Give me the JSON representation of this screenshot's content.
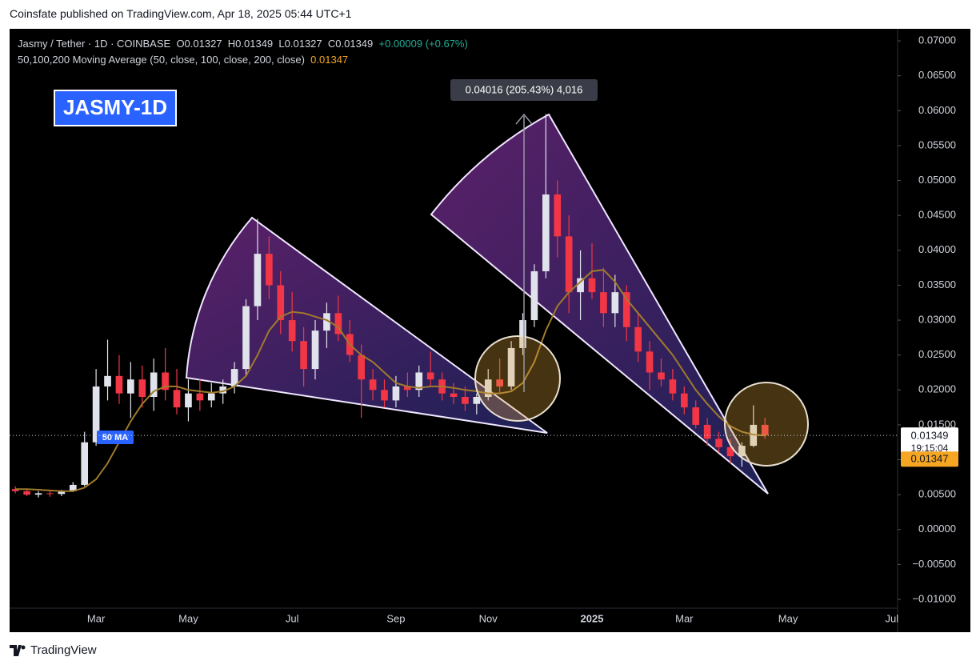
{
  "header": {
    "publisher": "Coinsfate published on TradingView.com, Apr 18, 2025 05:44 UTC+1"
  },
  "chart_data": {
    "type": "candlestick",
    "symbol": "Jasmy / Tether · 1D · COINBASE",
    "ohlc_readout": [
      "O0.01327",
      "H0.01349",
      "L0.01327",
      "C0.01349"
    ],
    "change": "+0.00009 (+0.67%)",
    "indicator": "50,100,200 Moving Average (50, close, 100, close, 200, close)",
    "badge": "JASMY-1D",
    "annotations": {
      "ma_tag": "50 MA",
      "measure": "0.04016 (205.43%) 4,016"
    },
    "countdown": "19:15:04",
    "categories": [
      null,
      null,
      null,
      null,
      null,
      null,
      null,
      "Mar",
      null,
      null,
      null,
      null,
      null,
      null,
      null,
      "May",
      null,
      null,
      null,
      null,
      null,
      null,
      null,
      null,
      "Jul",
      null,
      null,
      null,
      null,
      null,
      null,
      null,
      null,
      "Sep",
      null,
      null,
      null,
      null,
      null,
      null,
      null,
      "Nov",
      null,
      null,
      null,
      null,
      null,
      null,
      null,
      null,
      "2025",
      null,
      null,
      null,
      null,
      null,
      null,
      null,
      "Mar",
      null,
      null,
      null,
      null,
      null,
      null,
      null,
      null,
      "May",
      null,
      null,
      null,
      null,
      null,
      null,
      null,
      null,
      "Jul"
    ],
    "open": [
      0.0058,
      0.0055,
      0.005,
      0.0052,
      0.0051,
      0.0055,
      0.0064,
      0.0125,
      0.0205,
      0.022,
      0.0195,
      0.0215,
      0.019,
      0.0225,
      0.02,
      0.0175,
      0.0195,
      0.0185,
      0.0195,
      0.0205,
      0.023,
      0.032,
      0.0395,
      0.035,
      0.03,
      0.027,
      0.023,
      0.0285,
      0.031,
      0.028,
      0.025,
      0.0215,
      0.02,
      0.0185,
      0.0205,
      0.02,
      0.0225,
      0.0215,
      0.0195,
      0.019,
      0.018,
      0.019,
      0.0215,
      0.0205,
      0.026,
      0.03,
      0.037,
      0.048,
      0.042,
      0.034,
      0.036,
      0.034,
      0.031,
      0.034,
      0.029,
      0.0255,
      0.0225,
      0.0215,
      0.0195,
      0.0175,
      0.015,
      0.013,
      0.0118,
      0.0105,
      0.012,
      0.015,
      null,
      null,
      null,
      null,
      null,
      null,
      null,
      null,
      null,
      null,
      null
    ],
    "high": [
      0.0062,
      0.0058,
      0.0055,
      0.0056,
      0.0057,
      0.0068,
      0.014,
      0.023,
      0.0272,
      0.025,
      0.024,
      0.0235,
      0.0245,
      0.026,
      0.023,
      0.0215,
      0.0215,
      0.021,
      0.0215,
      0.024,
      0.033,
      0.0445,
      0.042,
      0.037,
      0.034,
      0.029,
      0.03,
      0.0325,
      0.0335,
      0.03,
      0.0265,
      0.023,
      0.0215,
      0.022,
      0.0225,
      0.0235,
      0.0255,
      0.0225,
      0.021,
      0.0205,
      0.0195,
      0.023,
      0.0245,
      0.027,
      0.031,
      0.038,
      0.0595,
      0.05,
      0.045,
      0.04,
      0.041,
      0.0375,
      0.0365,
      0.035,
      0.031,
      0.027,
      0.0245,
      0.023,
      0.0205,
      0.0185,
      0.016,
      0.014,
      0.013,
      0.0125,
      0.0178,
      0.016,
      null,
      null,
      null,
      null,
      null,
      null,
      null,
      null,
      null,
      null,
      null
    ],
    "low": [
      0.0052,
      0.0048,
      0.0046,
      0.0047,
      0.0048,
      0.0054,
      0.0062,
      0.012,
      0.0185,
      0.018,
      0.016,
      0.0175,
      0.017,
      0.0185,
      0.0165,
      0.0155,
      0.017,
      0.0175,
      0.018,
      0.0195,
      0.022,
      0.03,
      0.033,
      0.028,
      0.0255,
      0.0205,
      0.0215,
      0.026,
      0.027,
      0.024,
      0.016,
      0.0185,
      0.0175,
      0.0175,
      0.019,
      0.019,
      0.0205,
      0.0185,
      0.018,
      0.017,
      0.0165,
      0.0185,
      0.0195,
      0.02,
      0.025,
      0.029,
      0.036,
      0.039,
      0.031,
      0.03,
      0.033,
      0.029,
      0.029,
      0.027,
      0.024,
      0.02,
      0.0205,
      0.0185,
      0.0165,
      0.0145,
      0.012,
      0.011,
      0.0095,
      0.009,
      0.0118,
      0.013,
      null,
      null,
      null,
      null,
      null,
      null,
      null,
      null,
      null,
      null,
      null
    ],
    "close": [
      0.0055,
      0.005,
      0.0052,
      0.0051,
      0.0055,
      0.0064,
      0.0125,
      0.0205,
      0.022,
      0.0195,
      0.0215,
      0.019,
      0.0225,
      0.02,
      0.0175,
      0.0195,
      0.0185,
      0.0195,
      0.0205,
      0.023,
      0.032,
      0.0395,
      0.035,
      0.03,
      0.027,
      0.023,
      0.0285,
      0.031,
      0.028,
      0.025,
      0.0215,
      0.02,
      0.0185,
      0.0205,
      0.02,
      0.0225,
      0.0215,
      0.0195,
      0.019,
      0.018,
      0.019,
      0.0215,
      0.0205,
      0.026,
      0.03,
      0.037,
      0.048,
      0.042,
      0.034,
      0.036,
      0.034,
      0.031,
      0.034,
      0.029,
      0.0255,
      0.0225,
      0.0215,
      0.0195,
      0.0175,
      0.015,
      0.013,
      0.0118,
      0.0105,
      0.012,
      0.015,
      0.01349,
      null,
      null,
      null,
      null,
      null,
      null,
      null,
      null,
      null,
      null,
      null
    ],
    "up_color": "#e0e3eb",
    "down_color": "#f23645",
    "ma": {
      "color": "#a07a2c",
      "values": [
        0.0058,
        0.0058,
        0.0057,
        0.0056,
        0.0055,
        0.0055,
        0.006,
        0.0072,
        0.0095,
        0.0125,
        0.0155,
        0.018,
        0.0198,
        0.0205,
        0.0205,
        0.02,
        0.0198,
        0.0196,
        0.0198,
        0.0205,
        0.022,
        0.025,
        0.0285,
        0.0305,
        0.0312,
        0.031,
        0.0305,
        0.03,
        0.029,
        0.0265,
        0.025,
        0.024,
        0.0225,
        0.021,
        0.0205,
        0.0203,
        0.0205,
        0.0205,
        0.0203,
        0.02,
        0.0198,
        0.0195,
        0.0195,
        0.0198,
        0.021,
        0.024,
        0.0285,
        0.032,
        0.034,
        0.0355,
        0.037,
        0.0372,
        0.0355,
        0.033,
        0.031,
        0.029,
        0.027,
        0.025,
        0.0225,
        0.02,
        0.018,
        0.0162,
        0.0148,
        0.014,
        0.0136,
        0.01347,
        null,
        null,
        null,
        null,
        null,
        null,
        null,
        null,
        null,
        null,
        null
      ]
    },
    "ylim": [
      -0.0147,
      0.0715
    ],
    "yticks": [
      {
        "value": 0.07,
        "label": "0.07000"
      },
      {
        "value": 0.065,
        "label": "0.06500"
      },
      {
        "value": 0.06,
        "label": "0.06000"
      },
      {
        "value": 0.055,
        "label": "0.05500"
      },
      {
        "value": 0.05,
        "label": "0.05000"
      },
      {
        "value": 0.045,
        "label": "0.04500"
      },
      {
        "value": 0.04,
        "label": "0.04000"
      },
      {
        "value": 0.035,
        "label": "0.03500"
      },
      {
        "value": 0.03,
        "label": "0.03000"
      },
      {
        "value": 0.025,
        "label": "0.02500"
      },
      {
        "value": 0.02,
        "label": "0.02000"
      },
      {
        "value": 0.015,
        "label": "0.01500"
      },
      {
        "value": 0.01,
        "label": "0.01000"
      },
      {
        "value": 0.005,
        "label": "0.00500"
      },
      {
        "value": 0,
        "label": "0.00000"
      },
      {
        "value": -0.005,
        "label": "−0.00500"
      },
      {
        "value": -0.01,
        "label": "−0.01000"
      }
    ],
    "grid": false
  },
  "footer": {
    "brand": "TradingView"
  }
}
